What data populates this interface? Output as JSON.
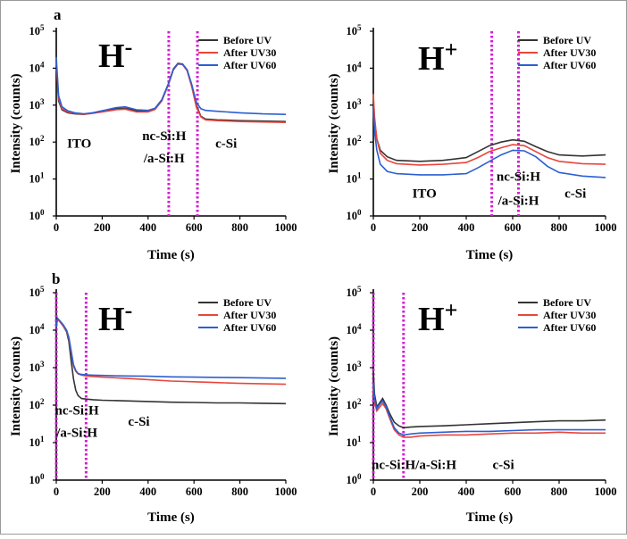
{
  "figure": {
    "panel_labels": [
      "a",
      "b"
    ]
  },
  "chart_data": [
    {
      "id": "a-left",
      "type": "line",
      "panel": "a",
      "ion_label": "H-",
      "xlabel": "Time (s)",
      "ylabel": "Intensity (counts)",
      "xlim": [
        0,
        1000
      ],
      "ylim_log10": [
        0,
        5
      ],
      "yscale": "log",
      "xticks": [
        "0",
        "200",
        "400",
        "600",
        "800",
        "1000"
      ],
      "yticks": [
        "10^0",
        "10^1",
        "10^2",
        "10^3",
        "10^4",
        "10^5"
      ],
      "vlines": [
        490,
        615
      ],
      "regions": [
        {
          "text": "ITO",
          "x": 100,
          "ylog": 1.85
        },
        {
          "text": "nc-Si:H",
          "x": 470,
          "ylog": 2.05
        },
        {
          "text": "/a-Si:H",
          "x": 470,
          "ylog": 1.45
        },
        {
          "text": "c-Si",
          "x": 740,
          "ylog": 1.85
        }
      ],
      "series": [
        {
          "name": "Before UV",
          "color": "#333333",
          "x": [
            0,
            10,
            25,
            50,
            80,
            120,
            160,
            200,
            260,
            300,
            350,
            400,
            430,
            460,
            490,
            510,
            530,
            550,
            570,
            590,
            610,
            630,
            650,
            700,
            800,
            900,
            1000
          ],
          "y": [
            12000,
            1300,
            750,
            620,
            580,
            560,
            620,
            700,
            800,
            820,
            700,
            700,
            800,
            1400,
            4000,
            9500,
            13500,
            13000,
            9000,
            3500,
            1000,
            500,
            420,
            400,
            380,
            370,
            360
          ]
        },
        {
          "name": "After UV30",
          "color": "#e8453c",
          "x": [
            0,
            10,
            25,
            50,
            80,
            120,
            160,
            200,
            260,
            300,
            350,
            400,
            430,
            460,
            490,
            510,
            530,
            550,
            570,
            590,
            610,
            630,
            650,
            700,
            800,
            900,
            1000
          ],
          "y": [
            15000,
            1500,
            800,
            650,
            600,
            560,
            600,
            650,
            750,
            780,
            650,
            650,
            760,
            1300,
            3800,
            9000,
            13000,
            12500,
            8500,
            3200,
            900,
            480,
            400,
            380,
            360,
            350,
            340
          ]
        },
        {
          "name": "After UV60",
          "color": "#2c5fd1",
          "x": [
            0,
            10,
            25,
            50,
            80,
            120,
            160,
            200,
            260,
            300,
            350,
            400,
            430,
            460,
            490,
            510,
            530,
            550,
            570,
            590,
            610,
            630,
            650,
            700,
            800,
            900,
            1000
          ],
          "y": [
            20000,
            1800,
            900,
            700,
            620,
            580,
            620,
            700,
            850,
            900,
            750,
            720,
            820,
            1400,
            3900,
            9200,
            13200,
            12800,
            9000,
            3700,
            1200,
            800,
            720,
            680,
            620,
            580,
            560
          ]
        }
      ],
      "legend": [
        "Before UV",
        "After UV30",
        "After UV60"
      ]
    },
    {
      "id": "a-right",
      "type": "line",
      "panel": "a",
      "ion_label": "H+",
      "xlabel": "Time (s)",
      "ylabel": "Intensity (counts)",
      "xlim": [
        0,
        1000
      ],
      "ylim_log10": [
        0,
        5
      ],
      "yscale": "log",
      "xticks": [
        "0",
        "200",
        "400",
        "600",
        "800",
        "1000"
      ],
      "yticks": [
        "10^0",
        "10^1",
        "10^2",
        "10^3",
        "10^4",
        "10^5"
      ],
      "vlines": [
        510,
        625
      ],
      "regions": [
        {
          "text": "ITO",
          "x": 220,
          "ylog": 0.5
        },
        {
          "text": "nc-Si:H",
          "x": 625,
          "ylog": 0.95
        },
        {
          "text": "/a-Si:H",
          "x": 625,
          "ylog": 0.3
        },
        {
          "text": "c-Si",
          "x": 870,
          "ylog": 0.5
        }
      ],
      "series": [
        {
          "name": "Before UV",
          "color": "#333333",
          "x": [
            0,
            5,
            15,
            30,
            60,
            100,
            200,
            300,
            400,
            450,
            500,
            550,
            600,
            650,
            700,
            750,
            800,
            900,
            1000
          ],
          "y": [
            1200,
            400,
            120,
            60,
            40,
            32,
            30,
            32,
            38,
            55,
            80,
            100,
            115,
            105,
            75,
            55,
            45,
            42,
            45
          ]
        },
        {
          "name": "After UV30",
          "color": "#e8453c",
          "x": [
            0,
            5,
            15,
            30,
            60,
            100,
            200,
            300,
            400,
            450,
            500,
            550,
            600,
            650,
            700,
            750,
            800,
            900,
            1000
          ],
          "y": [
            2000,
            500,
            120,
            50,
            32,
            26,
            24,
            25,
            28,
            38,
            55,
            70,
            85,
            80,
            55,
            38,
            30,
            26,
            25
          ]
        },
        {
          "name": "After UV60",
          "color": "#2c5fd1",
          "x": [
            0,
            5,
            15,
            30,
            60,
            100,
            200,
            300,
            400,
            450,
            500,
            550,
            600,
            650,
            700,
            750,
            800,
            900,
            1000
          ],
          "y": [
            800,
            200,
            60,
            25,
            16,
            14,
            13,
            13,
            14,
            20,
            30,
            45,
            60,
            58,
            40,
            22,
            15,
            12,
            11
          ]
        }
      ],
      "legend": [
        "Before UV",
        "After UV30",
        "After UV60"
      ]
    },
    {
      "id": "b-left",
      "type": "line",
      "panel": "b",
      "ion_label": "H-",
      "xlabel": "Time (s)",
      "ylabel": "Intensity (counts)",
      "xlim": [
        0,
        1000
      ],
      "ylim_log10": [
        0,
        5
      ],
      "yscale": "log",
      "xticks": [
        "0",
        "200",
        "400",
        "600",
        "800",
        "1000"
      ],
      "yticks": [
        "10^0",
        "10^1",
        "10^2",
        "10^3",
        "10^4",
        "10^5"
      ],
      "vlines": [
        0,
        130
      ],
      "regions": [
        {
          "text": "nc-Si:H",
          "x": 90,
          "ylog": 1.75
        },
        {
          "text": "/a-Si:H",
          "x": 90,
          "ylog": 1.15
        },
        {
          "text": "c-Si",
          "x": 360,
          "ylog": 1.45
        }
      ],
      "series": [
        {
          "name": "Before UV",
          "color": "#333333",
          "x": [
            0,
            5,
            15,
            30,
            45,
            55,
            65,
            75,
            85,
            95,
            110,
            130,
            160,
            200,
            300,
            400,
            500,
            600,
            700,
            800,
            900,
            1000
          ],
          "y": [
            12000,
            20000,
            17000,
            13000,
            9000,
            5000,
            1500,
            500,
            250,
            180,
            150,
            145,
            140,
            135,
            130,
            125,
            120,
            118,
            115,
            115,
            112,
            110
          ]
        },
        {
          "name": "After UV30",
          "color": "#e8453c",
          "x": [
            0,
            5,
            15,
            30,
            45,
            55,
            65,
            75,
            85,
            95,
            110,
            130,
            160,
            200,
            300,
            400,
            500,
            600,
            700,
            800,
            900,
            1000
          ],
          "y": [
            12000,
            20000,
            17000,
            13000,
            9500,
            6000,
            2500,
            1100,
            800,
            680,
            630,
            600,
            580,
            560,
            520,
            480,
            440,
            420,
            400,
            380,
            370,
            360
          ]
        },
        {
          "name": "After UV60",
          "color": "#2c5fd1",
          "x": [
            0,
            5,
            15,
            30,
            45,
            55,
            65,
            75,
            85,
            95,
            110,
            130,
            160,
            200,
            300,
            400,
            500,
            600,
            700,
            800,
            900,
            1000
          ],
          "y": [
            12000,
            21000,
            18000,
            14000,
            10000,
            6500,
            2800,
            1200,
            850,
            700,
            660,
            640,
            630,
            620,
            600,
            590,
            570,
            560,
            550,
            540,
            530,
            520
          ]
        }
      ],
      "legend": [
        "Before UV",
        "After UV30",
        "After UV60"
      ]
    },
    {
      "id": "b-right",
      "type": "line",
      "panel": "b",
      "ion_label": "H+",
      "xlabel": "Time (s)",
      "ylabel": "Intensity (counts)",
      "xlim": [
        0,
        1000
      ],
      "ylim_log10": [
        0,
        5
      ],
      "yscale": "log",
      "xticks": [
        "0",
        "200",
        "400",
        "600",
        "800",
        "1000"
      ],
      "yticks": [
        "10^0",
        "10^1",
        "10^2",
        "10^3",
        "10^4",
        "10^5"
      ],
      "vlines": [
        0,
        130
      ],
      "regions": [
        {
          "text": "nc-Si:H/a-Si:H",
          "x": 175,
          "ylog": 0.3
        },
        {
          "text": "c-Si",
          "x": 560,
          "ylog": 0.3
        }
      ],
      "series": [
        {
          "name": "Before UV",
          "color": "#333333",
          "x": [
            0,
            5,
            15,
            25,
            40,
            55,
            70,
            90,
            110,
            130,
            160,
            200,
            300,
            400,
            500,
            600,
            700,
            800,
            900,
            1000
          ],
          "y": [
            800,
            200,
            90,
            110,
            150,
            100,
            60,
            35,
            28,
            25,
            26,
            27,
            28,
            30,
            32,
            34,
            36,
            38,
            38,
            40
          ]
        },
        {
          "name": "After UV30",
          "color": "#e8453c",
          "x": [
            0,
            5,
            15,
            25,
            40,
            55,
            70,
            90,
            110,
            130,
            160,
            200,
            300,
            400,
            500,
            600,
            700,
            800,
            900,
            1000
          ],
          "y": [
            300,
            120,
            70,
            85,
            110,
            80,
            45,
            22,
            16,
            14,
            14,
            15,
            16,
            16,
            17,
            18,
            18,
            19,
            18,
            18
          ]
        },
        {
          "name": "After UV60",
          "color": "#2c5fd1",
          "x": [
            0,
            5,
            15,
            25,
            40,
            55,
            70,
            90,
            110,
            130,
            160,
            200,
            300,
            400,
            500,
            600,
            700,
            800,
            900,
            1000
          ],
          "y": [
            400,
            150,
            80,
            100,
            130,
            90,
            50,
            25,
            18,
            16,
            17,
            18,
            19,
            20,
            20,
            21,
            22,
            22,
            22,
            22
          ]
        }
      ],
      "legend": [
        "Before UV",
        "After UV30",
        "After UV60"
      ]
    }
  ]
}
